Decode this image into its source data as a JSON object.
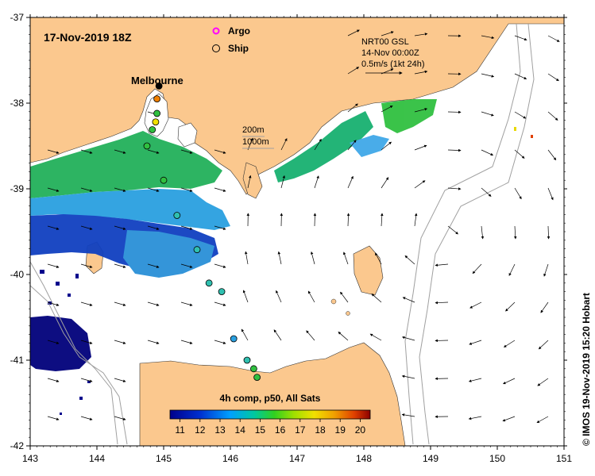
{
  "title": "17-Nov-2019 18Z",
  "legend": {
    "argo": "Argo",
    "ship": "Ship",
    "argo_color": "#ff00ff"
  },
  "city": "Melbourne",
  "bathymetry": {
    "label_200": "200m",
    "label_1000": "1000m"
  },
  "currents": {
    "source": "NRT00 GSL",
    "date": "14-Nov 00:00Z",
    "scale": "0.5m/s (1kt 24h)"
  },
  "colorbar": {
    "title": "4h comp, p50, All Sats",
    "ticks": [
      "11",
      "12",
      "13",
      "14",
      "15",
      "16",
      "17",
      "18",
      "19",
      "20"
    ],
    "min": 11,
    "max": 20
  },
  "x_axis": {
    "ticks": [
      "143",
      "144",
      "145",
      "146",
      "147",
      "148",
      "149",
      "150",
      "151"
    ],
    "min": 143,
    "max": 151
  },
  "y_axis": {
    "ticks": [
      "-37",
      "-38",
      "-39",
      "-40",
      "-41",
      "-42"
    ],
    "min": -42,
    "max": -37
  },
  "credit": "© IMOS 19-Nov-2019 15:20 Hobart",
  "colors": {
    "land": "#fbc88e",
    "ocean": "#ffffff",
    "sst_cold": "#00008c",
    "sst_warm": "#8c0000"
  },
  "ship_track": [
    {
      "lon": 144.93,
      "lat": -37.8
    },
    {
      "lon": 144.9,
      "lat": -37.95
    },
    {
      "lon": 144.9,
      "lat": -38.12
    },
    {
      "lon": 144.88,
      "lat": -38.22
    },
    {
      "lon": 144.83,
      "lat": -38.31
    },
    {
      "lon": 144.75,
      "lat": -38.5
    },
    {
      "lon": 145.0,
      "lat": -38.9
    },
    {
      "lon": 145.2,
      "lat": -39.31
    },
    {
      "lon": 145.5,
      "lat": -39.71
    },
    {
      "lon": 145.68,
      "lat": -40.1
    },
    {
      "lon": 145.87,
      "lat": -40.2
    },
    {
      "lon": 146.05,
      "lat": -40.75
    },
    {
      "lon": 146.25,
      "lat": -41.0
    },
    {
      "lon": 146.35,
      "lat": -41.1
    },
    {
      "lon": 146.4,
      "lat": -41.2
    }
  ]
}
